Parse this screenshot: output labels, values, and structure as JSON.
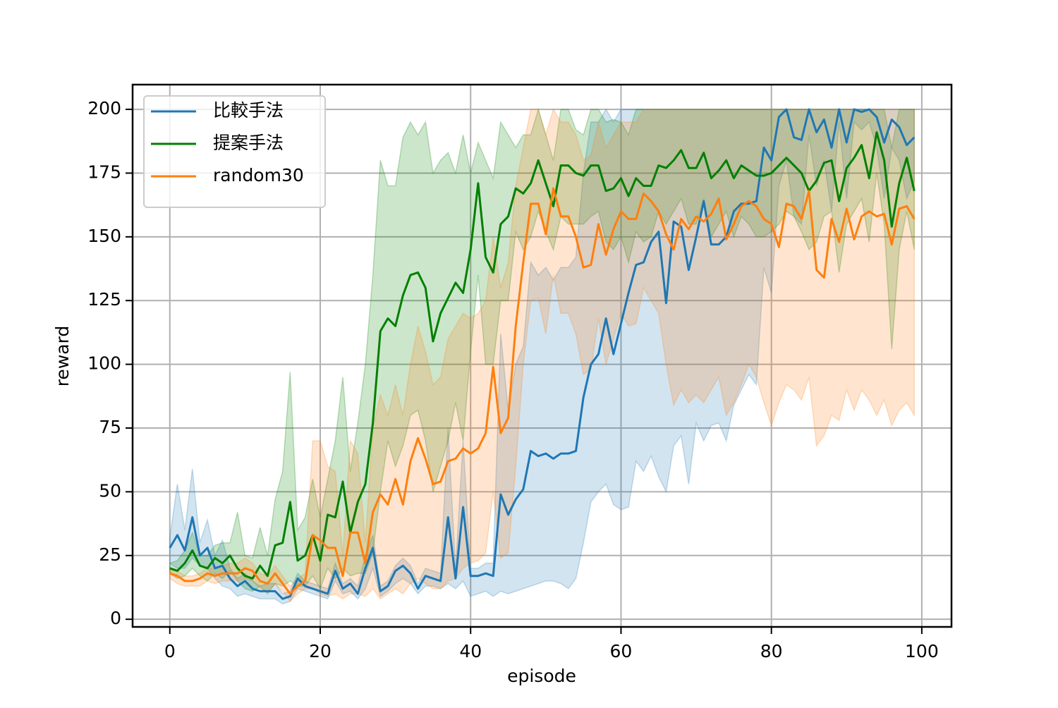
{
  "chart_data": {
    "type": "line",
    "x_label": "episode",
    "y_label": "reward",
    "x": [
      0,
      1,
      2,
      3,
      4,
      5,
      6,
      7,
      8,
      9,
      10,
      11,
      12,
      13,
      14,
      15,
      16,
      17,
      18,
      19,
      20,
      21,
      22,
      23,
      24,
      25,
      26,
      27,
      28,
      29,
      30,
      31,
      32,
      33,
      34,
      35,
      36,
      37,
      38,
      39,
      40,
      41,
      42,
      43,
      44,
      45,
      46,
      47,
      48,
      49,
      50,
      51,
      52,
      53,
      54,
      55,
      56,
      57,
      58,
      59,
      60,
      61,
      62,
      63,
      64,
      65,
      66,
      67,
      68,
      69,
      70,
      71,
      72,
      73,
      74,
      75,
      76,
      77,
      78,
      79,
      80,
      81,
      82,
      83,
      84,
      85,
      86,
      87,
      88,
      89,
      90,
      91,
      92,
      93,
      94,
      95,
      96,
      97,
      98,
      99
    ],
    "xlim": [
      -4.95,
      103.95
    ],
    "xticks": [
      0,
      20,
      40,
      60,
      80,
      100
    ],
    "ylim": [
      -3,
      209.7
    ],
    "yticks": [
      0,
      25,
      50,
      75,
      100,
      125,
      150,
      175,
      200
    ],
    "grid": true,
    "legend": "upper left",
    "series": [
      {
        "name": "比較手法",
        "color": "#1f77b4",
        "values": [
          28,
          33,
          27,
          40,
          25,
          28,
          20,
          21,
          16,
          13,
          15,
          12,
          11,
          11,
          11,
          8,
          9,
          16,
          13,
          12,
          11,
          10,
          19,
          12,
          14,
          10,
          20,
          28,
          11,
          13,
          19,
          21,
          18,
          12,
          17,
          16,
          15,
          40,
          16,
          44,
          17,
          17,
          18,
          17,
          49,
          41,
          47,
          51,
          66,
          64,
          65,
          63,
          65,
          65,
          66,
          87,
          100,
          104,
          118,
          104,
          116,
          128,
          139,
          140,
          148,
          152,
          124,
          156,
          154,
          137,
          150,
          164,
          147,
          147,
          150,
          160,
          163,
          163,
          164,
          185,
          180,
          197,
          200,
          189,
          188,
          200,
          191,
          196,
          185,
          200,
          187,
          200,
          199,
          200,
          197,
          187,
          196,
          193,
          186,
          189
        ],
        "lower": [
          22,
          20,
          20,
          24,
          21,
          20,
          16,
          13,
          12,
          9,
          10,
          9,
          8,
          8,
          8,
          6,
          7,
          12,
          11,
          10,
          9,
          8,
          15,
          10,
          11,
          8,
          12,
          20,
          9,
          11,
          14,
          16,
          14,
          10,
          13,
          13,
          12,
          14,
          12,
          15,
          9,
          10,
          11,
          9,
          11,
          10,
          11,
          12,
          13,
          14,
          15,
          15,
          14,
          12,
          16,
          30,
          46,
          50,
          53,
          45,
          43,
          44,
          62,
          58,
          64,
          56,
          50,
          68,
          72,
          53,
          77,
          70,
          76,
          77,
          70,
          84,
          90,
          96,
          92,
          138,
          128,
          170,
          180,
          158,
          155,
          190,
          170,
          180,
          160,
          195,
          165,
          195,
          192,
          195,
          185,
          165,
          185,
          180,
          165,
          172
        ],
        "upper": [
          32,
          53,
          35,
          59,
          30,
          39,
          25,
          31,
          20,
          16,
          18,
          15,
          13,
          14,
          14,
          10,
          11,
          18,
          15,
          14,
          13,
          12,
          22,
          14,
          16,
          13,
          25,
          33,
          13,
          15,
          21,
          24,
          21,
          14,
          20,
          19,
          18,
          75,
          20,
          70,
          20,
          20,
          22,
          22,
          112,
          82,
          100,
          107,
          140,
          135,
          138,
          133,
          138,
          138,
          142,
          175,
          195,
          195,
          200,
          195,
          200,
          200,
          200,
          200,
          200,
          200,
          200,
          200,
          200,
          200,
          200,
          200,
          200,
          200,
          200,
          200,
          200,
          200,
          200,
          200,
          200,
          200,
          200,
          200,
          200,
          200,
          200,
          200,
          200,
          200,
          200,
          200,
          200,
          200,
          200,
          200,
          200,
          200,
          200,
          200
        ]
      },
      {
        "name": "提案手法",
        "color": "#008000",
        "values": [
          20,
          19,
          22,
          27,
          21,
          20,
          24,
          22,
          25,
          20,
          17,
          16,
          21,
          17,
          29,
          30,
          46,
          23,
          25,
          33,
          23,
          41,
          40,
          54,
          34,
          46,
          53,
          77,
          113,
          118,
          115,
          127,
          135,
          136,
          130,
          109,
          120,
          126,
          132,
          128,
          145,
          171,
          142,
          136,
          155,
          158,
          169,
          167,
          171,
          180,
          171,
          162,
          178,
          178,
          175,
          174,
          178,
          178,
          168,
          169,
          173,
          166,
          173,
          170,
          170,
          178,
          177,
          180,
          184,
          177,
          177,
          183,
          173,
          176,
          180,
          173,
          178,
          176,
          174,
          174,
          175,
          178,
          181,
          178,
          175,
          168,
          172,
          179,
          180,
          164,
          177,
          181,
          186,
          173,
          191,
          180,
          154,
          171,
          181,
          168
        ],
        "lower": [
          18,
          16,
          17,
          20,
          17,
          15,
          18,
          16,
          19,
          15,
          12,
          11,
          13,
          10,
          14,
          13,
          15,
          13,
          13,
          17,
          12,
          20,
          16,
          20,
          17,
          18,
          18,
          26,
          50,
          70,
          60,
          68,
          80,
          82,
          70,
          50,
          60,
          70,
          85,
          70,
          105,
          135,
          100,
          100,
          125,
          125,
          152,
          145,
          150,
          160,
          152,
          145,
          158,
          155,
          155,
          155,
          158,
          160,
          148,
          145,
          150,
          140,
          152,
          148,
          150,
          160,
          155,
          160,
          165,
          155,
          155,
          165,
          150,
          155,
          160,
          150,
          158,
          155,
          150,
          150,
          152,
          155,
          160,
          158,
          152,
          145,
          148,
          158,
          160,
          136,
          155,
          160,
          165,
          148,
          175,
          155,
          106,
          145,
          160,
          145
        ],
        "upper": [
          22,
          23,
          27,
          34,
          25,
          25,
          29,
          30,
          30,
          42,
          25,
          24,
          36,
          25,
          47,
          58,
          97,
          35,
          40,
          55,
          40,
          55,
          70,
          95,
          58,
          77,
          100,
          135,
          180,
          170,
          170,
          189,
          195,
          190,
          195,
          175,
          180,
          183,
          175,
          190,
          175,
          187,
          180,
          173,
          195,
          190,
          185,
          190,
          190,
          200,
          190,
          180,
          200,
          200,
          192,
          190,
          200,
          200,
          195,
          196,
          195,
          190,
          200,
          200,
          200,
          200,
          200,
          200,
          200,
          200,
          200,
          200,
          200,
          200,
          200,
          200,
          200,
          200,
          200,
          200,
          200,
          200,
          200,
          200,
          200,
          200,
          200,
          200,
          200,
          200,
          200,
          200,
          200,
          200,
          200,
          200,
          185,
          200,
          200,
          200
        ]
      },
      {
        "name": "random30",
        "color": "#ff7f0e",
        "values": [
          18,
          17,
          15,
          15,
          16,
          18,
          17,
          18,
          18,
          18,
          20,
          19,
          15,
          14,
          18,
          14,
          10,
          13,
          15,
          33,
          31,
          28,
          28,
          17,
          34,
          34,
          22,
          42,
          49,
          45,
          55,
          45,
          62,
          71,
          63,
          53,
          54,
          62,
          63,
          67,
          65,
          67,
          73,
          99,
          73,
          79,
          115,
          140,
          163,
          163,
          151,
          169,
          158,
          158,
          150,
          138,
          139,
          155,
          143,
          153,
          160,
          157,
          157,
          167,
          164,
          160,
          151,
          145,
          157,
          153,
          158,
          156,
          159,
          165,
          149,
          155,
          162,
          164,
          162,
          157,
          155,
          146,
          163,
          162,
          157,
          168,
          137,
          134,
          157,
          148,
          161,
          149,
          158,
          160,
          158,
          159,
          147,
          161,
          162,
          157
        ],
        "lower": [
          16,
          14,
          13,
          13,
          13,
          15,
          14,
          15,
          15,
          15,
          16,
          15,
          12,
          11,
          14,
          11,
          7,
          10,
          12,
          12,
          10,
          9,
          10,
          8,
          10,
          10,
          9,
          12,
          8,
          10,
          12,
          10,
          14,
          16,
          14,
          12,
          12,
          15,
          16,
          20,
          22,
          23,
          26,
          50,
          24,
          26,
          60,
          100,
          125,
          126,
          112,
          135,
          120,
          120,
          112,
          96,
          98,
          118,
          100,
          110,
          120,
          115,
          116,
          130,
          125,
          120,
          100,
          84,
          90,
          85,
          88,
          85,
          90,
          95,
          80,
          85,
          92,
          100,
          95,
          85,
          76,
          85,
          92,
          90,
          86,
          95,
          68,
          72,
          80,
          78,
          90,
          82,
          90,
          86,
          80,
          86,
          76,
          82,
          85,
          80
        ],
        "upper": [
          19,
          19,
          17,
          17,
          18,
          20,
          20,
          21,
          22,
          22,
          24,
          22,
          18,
          17,
          21,
          17,
          13,
          16,
          18,
          70,
          70,
          60,
          58,
          25,
          70,
          65,
          30,
          75,
          88,
          80,
          92,
          80,
          100,
          115,
          105,
          92,
          95,
          110,
          115,
          120,
          118,
          120,
          125,
          150,
          130,
          140,
          170,
          185,
          200,
          200,
          190,
          200,
          195,
          195,
          190,
          180,
          182,
          195,
          185,
          190,
          195,
          195,
          195,
          200,
          200,
          200,
          200,
          200,
          200,
          200,
          200,
          200,
          200,
          200,
          200,
          200,
          200,
          200,
          200,
          200,
          200,
          200,
          200,
          200,
          200,
          200,
          200,
          200,
          200,
          200,
          200,
          200,
          200,
          200,
          200,
          200,
          200,
          200,
          200,
          200
        ]
      }
    ]
  }
}
